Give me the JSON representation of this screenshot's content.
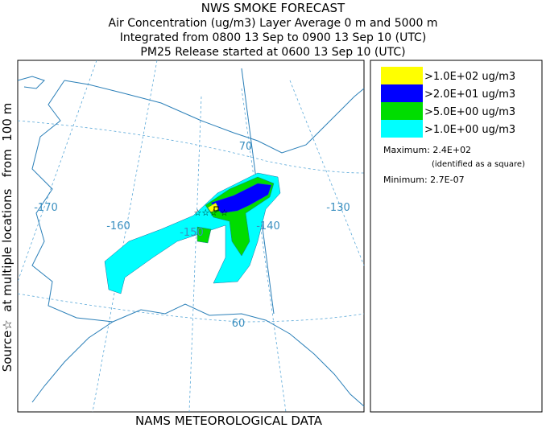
{
  "header": {
    "title": "NWS SMOKE FORECAST",
    "lines": [
      "Air Concentration (ug/m3) Layer Average    0 m and  5000 m",
      "Integrated from 0800 13 Sep to 0900 13 Sep 10 (UTC)",
      "PM25 Release started at 0600 13 Sep 10 (UTC)"
    ]
  },
  "side_label": "Source☆  at multiple locations   from  100 m",
  "legend": {
    "items": [
      {
        "label": ">1.0E+02 ug/m3",
        "color": "#ffff00"
      },
      {
        "label": ">2.0E+01 ug/m3",
        "color": "#0000ff"
      },
      {
        "label": ">5.0E+00 ug/m3",
        "color": "#00dd00"
      },
      {
        "label": ">1.0E+00 ug/m3",
        "color": "#00ffff"
      }
    ],
    "maximum": "Maximum: 2.4E+02",
    "max_note": "(identified as a square)",
    "minimum": "Minimum: 2.7E-07"
  },
  "map": {
    "labels": [
      "70",
      "-170",
      "-160",
      "-150",
      "-140",
      "-130",
      "60"
    ]
  },
  "footer": "NAMS METEOROLOGICAL DATA"
}
